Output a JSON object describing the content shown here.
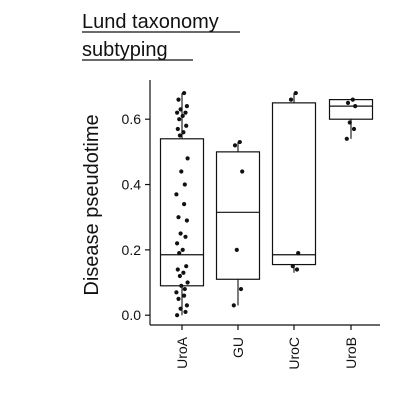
{
  "chart_data": {
    "type": "boxplot",
    "title_lines": [
      "Lund taxonomy",
      "subtyping"
    ],
    "ylabel": "Disease pseudotime",
    "xlabel": "",
    "ylim": [
      -0.03,
      0.72
    ],
    "yticks": [
      0.0,
      0.2,
      0.4,
      0.6
    ],
    "ytick_labels": [
      "0.0",
      "0.2",
      "0.4",
      "0.6"
    ],
    "grid": false,
    "categories": [
      "UroA",
      "GU",
      "UroC",
      "UroB"
    ],
    "boxes": [
      {
        "category": "UroA",
        "q1": 0.09,
        "median": 0.185,
        "q3": 0.54,
        "whisker_low": 0.0,
        "whisker_high": 0.68,
        "points": [
          0.68,
          0.66,
          0.64,
          0.63,
          0.62,
          0.62,
          0.61,
          0.6,
          0.58,
          0.57,
          0.56,
          0.55,
          0.48,
          0.44,
          0.4,
          0.37,
          0.34,
          0.3,
          0.29,
          0.25,
          0.24,
          0.22,
          0.2,
          0.19,
          0.15,
          0.14,
          0.13,
          0.12,
          0.1,
          0.09,
          0.08,
          0.07,
          0.06,
          0.05,
          0.03,
          0.02,
          0.01,
          0.0
        ]
      },
      {
        "category": "GU",
        "q1": 0.11,
        "median": 0.315,
        "q3": 0.5,
        "whisker_low": 0.03,
        "whisker_high": 0.53,
        "points": [
          0.53,
          0.52,
          0.44,
          0.2,
          0.08,
          0.03
        ]
      },
      {
        "category": "UroC",
        "q1": 0.155,
        "median": 0.185,
        "q3": 0.65,
        "whisker_low": 0.13,
        "whisker_high": 0.68,
        "points": [
          0.68,
          0.66,
          0.19,
          0.15,
          0.14
        ]
      },
      {
        "category": "UroB",
        "q1": 0.6,
        "median": 0.64,
        "q3": 0.66,
        "whisker_low": 0.54,
        "whisker_high": 0.66,
        "points": [
          0.66,
          0.65,
          0.64,
          0.59,
          0.57,
          0.54
        ]
      }
    ]
  }
}
